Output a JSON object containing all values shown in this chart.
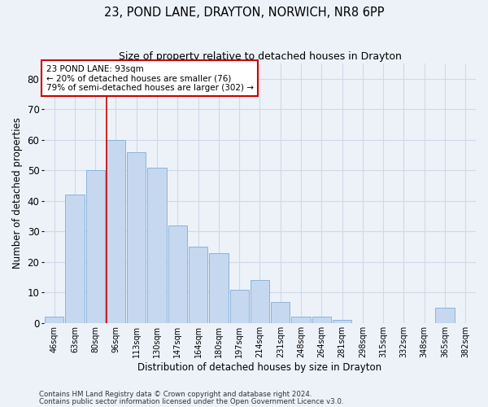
{
  "title1": "23, POND LANE, DRAYTON, NORWICH, NR8 6PP",
  "title2": "Size of property relative to detached houses in Drayton",
  "xlabel": "Distribution of detached houses by size in Drayton",
  "ylabel": "Number of detached properties",
  "categories": [
    "46sqm",
    "63sqm",
    "80sqm",
    "96sqm",
    "113sqm",
    "130sqm",
    "147sqm",
    "164sqm",
    "180sqm",
    "197sqm",
    "214sqm",
    "231sqm",
    "248sqm",
    "264sqm",
    "281sqm",
    "298sqm",
    "315sqm",
    "332sqm",
    "348sqm",
    "365sqm",
    "382sqm"
  ],
  "values": [
    2,
    42,
    50,
    60,
    56,
    51,
    32,
    25,
    23,
    11,
    14,
    7,
    2,
    2,
    1,
    0,
    0,
    0,
    0,
    5,
    0
  ],
  "bar_color": "#c5d8f0",
  "bar_edge_color": "#8ab4d9",
  "annotation_text_line1": "23 POND LANE: 93sqm",
  "annotation_text_line2": "← 20% of detached houses are smaller (76)",
  "annotation_text_line3": "79% of semi-detached houses are larger (302) →",
  "annotation_box_color": "#ffffff",
  "annotation_box_edge_color": "#cc0000",
  "vline_color": "#cc0000",
  "ylim": [
    0,
    85
  ],
  "yticks": [
    0,
    10,
    20,
    30,
    40,
    50,
    60,
    70,
    80
  ],
  "grid_color": "#d0d8e8",
  "footer1": "Contains HM Land Registry data © Crown copyright and database right 2024.",
  "footer2": "Contains public sector information licensed under the Open Government Licence v3.0.",
  "bg_color": "#edf2f9",
  "plot_bg_color": "#edf2f9"
}
